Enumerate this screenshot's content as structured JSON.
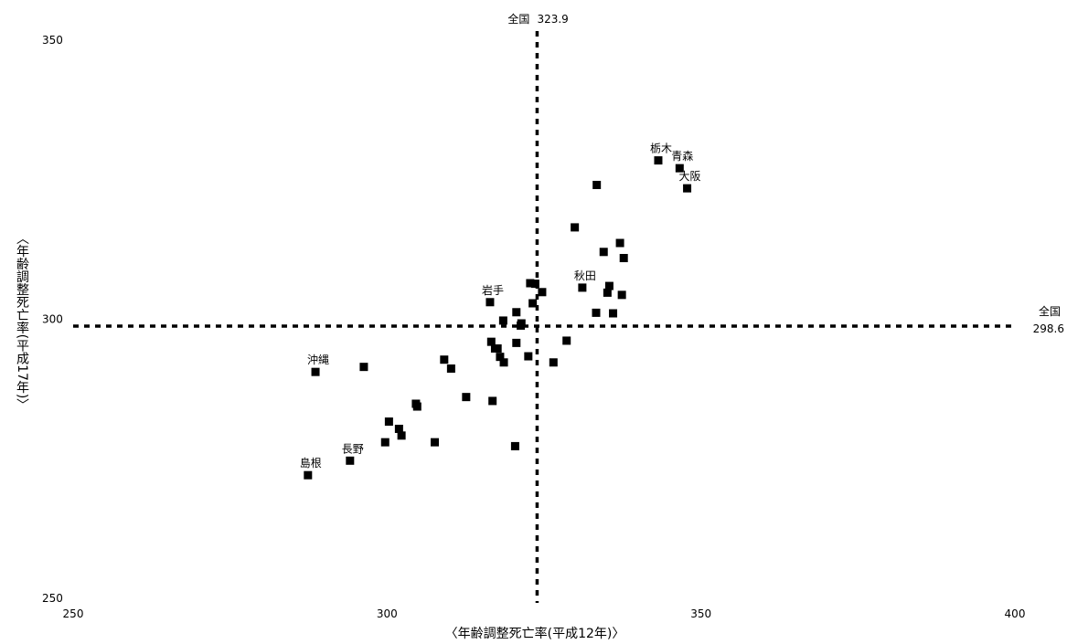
{
  "chart_data": {
    "type": "scatter",
    "xlabel": "〈年齢調整死亡率(平成12年)〉",
    "ylabel": "〈年齢調整死亡率(平成17年)〉",
    "xlim": [
      250,
      400
    ],
    "ylim": [
      250,
      350
    ],
    "xticks": [
      250,
      300,
      350,
      400
    ],
    "yticks": [
      250,
      300,
      350
    ],
    "grid": false,
    "legend": "none",
    "colors": {
      "marker": "#000000",
      "reference": "#000000"
    },
    "reference_lines": {
      "x": {
        "label": "全国",
        "value_text": "323.9",
        "value": 323.9
      },
      "y": {
        "label": "全国",
        "value_text": "298.6",
        "value": 298.6
      }
    },
    "points": [
      {
        "x": 287.4,
        "y": 271.9,
        "label": "島根"
      },
      {
        "x": 288.6,
        "y": 290.4,
        "label": "沖縄"
      },
      {
        "x": 294.1,
        "y": 274.5,
        "label": "長野"
      },
      {
        "x": 296.3,
        "y": 291.3
      },
      {
        "x": 299.7,
        "y": 277.8
      },
      {
        "x": 300.3,
        "y": 281.5
      },
      {
        "x": 301.9,
        "y": 280.2
      },
      {
        "x": 302.3,
        "y": 279.0
      },
      {
        "x": 304.6,
        "y": 284.7
      },
      {
        "x": 304.8,
        "y": 284.2
      },
      {
        "x": 307.6,
        "y": 277.8
      },
      {
        "x": 309.1,
        "y": 292.6
      },
      {
        "x": 310.2,
        "y": 291.0
      },
      {
        "x": 312.6,
        "y": 285.9
      },
      {
        "x": 316.4,
        "y": 302.9,
        "label": "岩手"
      },
      {
        "x": 316.6,
        "y": 295.8
      },
      {
        "x": 316.8,
        "y": 285.2
      },
      {
        "x": 317.2,
        "y": 294.6
      },
      {
        "x": 317.6,
        "y": 294.6
      },
      {
        "x": 318.0,
        "y": 293.1
      },
      {
        "x": 318.5,
        "y": 299.6
      },
      {
        "x": 318.6,
        "y": 292.1
      },
      {
        "x": 320.6,
        "y": 301.1
      },
      {
        "x": 320.6,
        "y": 295.6
      },
      {
        "x": 320.4,
        "y": 277.1
      },
      {
        "x": 321.3,
        "y": 298.7
      },
      {
        "x": 321.4,
        "y": 299.1
      },
      {
        "x": 322.5,
        "y": 293.2
      },
      {
        "x": 322.8,
        "y": 306.3
      },
      {
        "x": 323.2,
        "y": 302.7
      },
      {
        "x": 323.6,
        "y": 306.2
      },
      {
        "x": 324.7,
        "y": 304.7
      },
      {
        "x": 326.5,
        "y": 292.1
      },
      {
        "x": 328.6,
        "y": 296.0
      },
      {
        "x": 329.9,
        "y": 316.3
      },
      {
        "x": 331.1,
        "y": 305.5,
        "label": "秋田"
      },
      {
        "x": 333.3,
        "y": 301.0
      },
      {
        "x": 333.4,
        "y": 323.9
      },
      {
        "x": 334.5,
        "y": 311.9
      },
      {
        "x": 335.1,
        "y": 304.6
      },
      {
        "x": 335.4,
        "y": 305.8
      },
      {
        "x": 336.0,
        "y": 300.9
      },
      {
        "x": 337.1,
        "y": 313.5
      },
      {
        "x": 337.4,
        "y": 304.2
      },
      {
        "x": 337.7,
        "y": 310.8
      },
      {
        "x": 343.2,
        "y": 328.3,
        "label": "栃木"
      },
      {
        "x": 346.6,
        "y": 326.9,
        "label": "青森"
      },
      {
        "x": 347.8,
        "y": 323.3,
        "label": "大阪"
      }
    ]
  }
}
